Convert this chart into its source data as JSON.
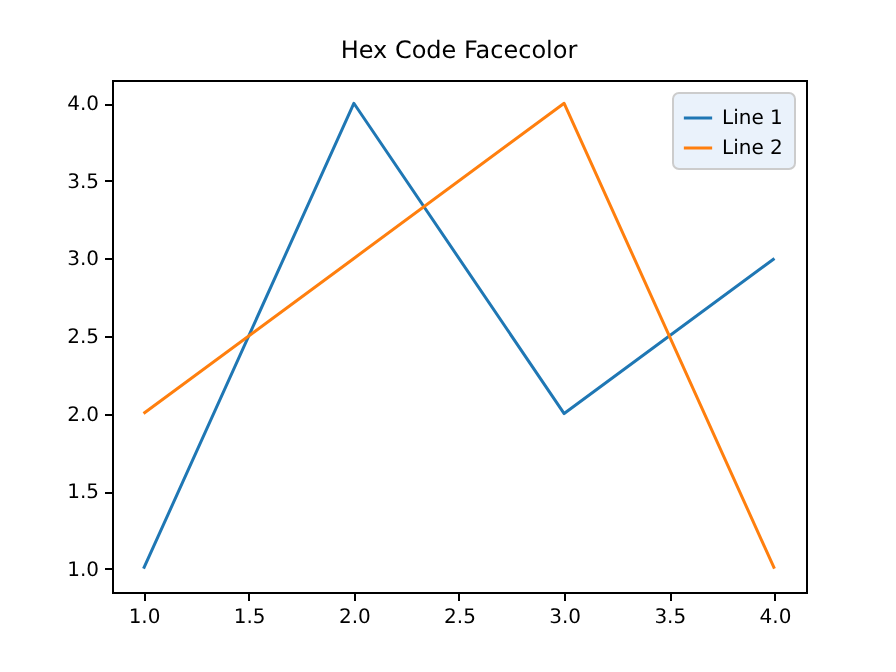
{
  "chart_data": {
    "type": "line",
    "title": "Hex Code Facecolor",
    "x": [
      1,
      2,
      3,
      4
    ],
    "series": [
      {
        "name": "Line 1",
        "color": "#1f77b4",
        "values": [
          1,
          4,
          2,
          3
        ]
      },
      {
        "name": "Line 2",
        "color": "#ff7f0e",
        "values": [
          2,
          3,
          4,
          1
        ]
      }
    ],
    "xlim": [
      0.85,
      4.15
    ],
    "ylim": [
      0.85,
      4.15
    ],
    "xticks": [
      {
        "value": 1,
        "label": "1.0"
      },
      {
        "value": 1.5,
        "label": "1.5"
      },
      {
        "value": 2,
        "label": "2.0"
      },
      {
        "value": 2.5,
        "label": "2.5"
      },
      {
        "value": 3,
        "label": "3.0"
      },
      {
        "value": 3.5,
        "label": "3.5"
      },
      {
        "value": 4,
        "label": "4.0"
      }
    ],
    "yticks": [
      {
        "value": 1,
        "label": "1.0"
      },
      {
        "value": 1.5,
        "label": "1.5"
      },
      {
        "value": 2,
        "label": "2.0"
      },
      {
        "value": 2.5,
        "label": "2.5"
      },
      {
        "value": 3,
        "label": "3.0"
      },
      {
        "value": 3.5,
        "label": "3.5"
      },
      {
        "value": 4,
        "label": "4.0"
      }
    ],
    "legend": "top right",
    "grid": false,
    "marker": "none",
    "line_style": "solid"
  }
}
